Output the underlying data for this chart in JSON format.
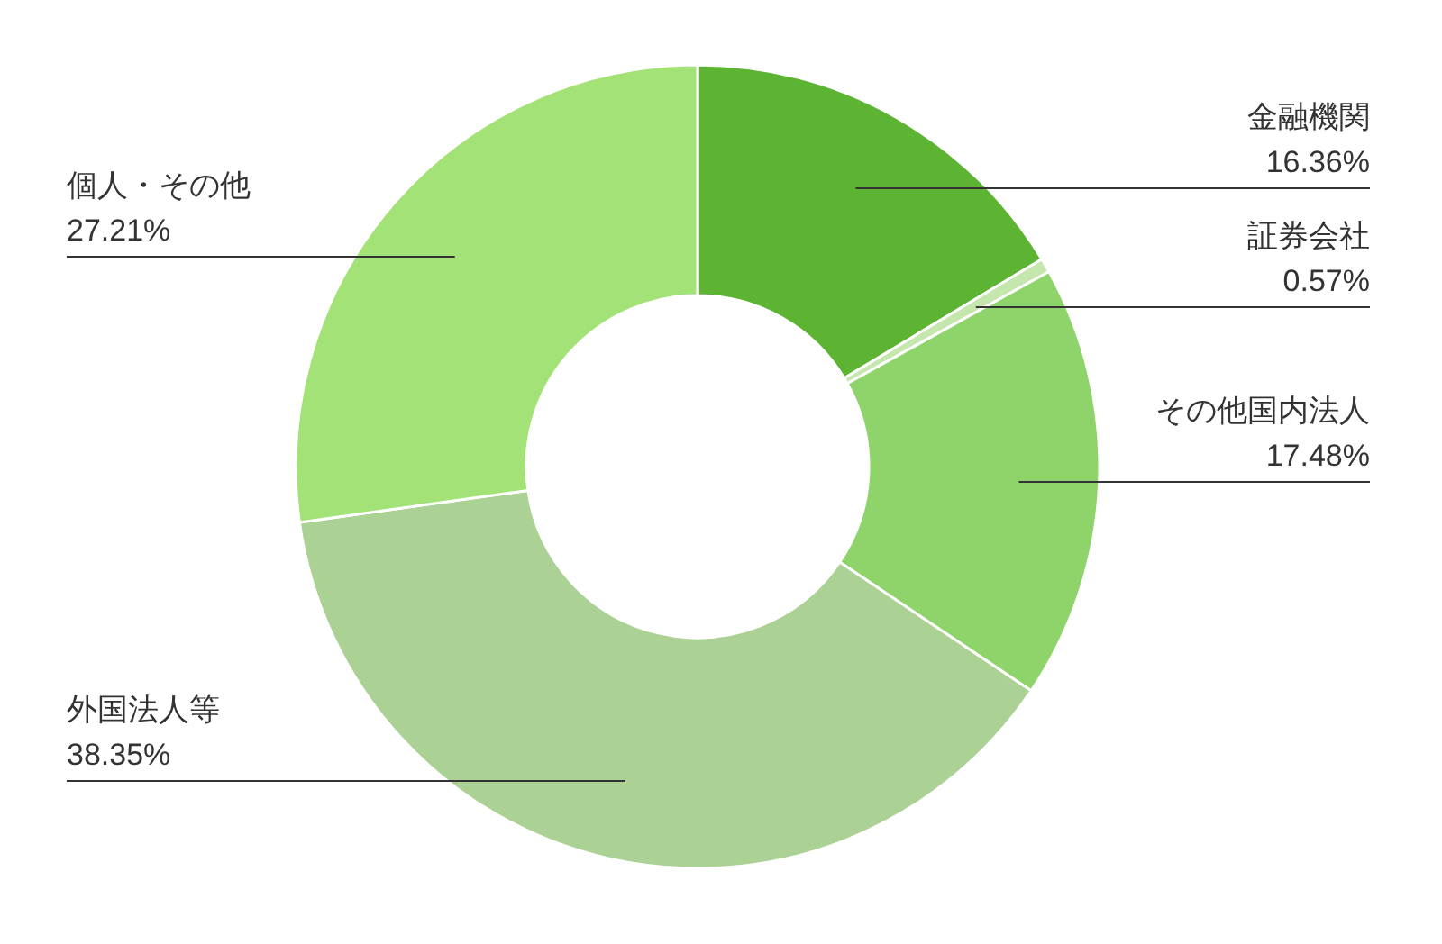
{
  "chart_data": {
    "type": "donut",
    "categories": [
      "金融機関",
      "証券会社",
      "その他国内法人",
      "外国法人等",
      "個人・その他"
    ],
    "values": [
      16.36,
      0.57,
      17.48,
      38.35,
      27.21
    ],
    "value_labels": [
      "16.36%",
      "0.57%",
      "17.48%",
      "38.35%",
      "27.21%"
    ],
    "colors": [
      "#5db433",
      "#c5e6ad",
      "#8fd46b",
      "#abd194",
      "#a3e276"
    ]
  }
}
